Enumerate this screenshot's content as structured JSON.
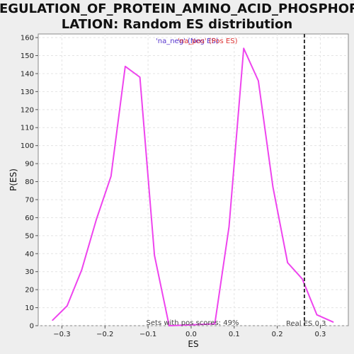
{
  "chart_data": {
    "type": "line",
    "title_lines": [
      "REGULATION_OF_PROTEIN_AMINO_ACID_PHOSPHORY",
      "LATION: Random ES distribution"
    ],
    "xlabel": "ES",
    "ylabel": "P(ES)",
    "xlim": [
      -0.355,
      0.365
    ],
    "ylim": [
      0,
      162
    ],
    "x_ticks": [
      -0.3,
      -0.2,
      -0.1,
      0.0,
      0.1,
      0.2,
      0.3
    ],
    "x_tick_labels": [
      "−0.3",
      "−0.2",
      "−0.1",
      "0.0",
      "0.1",
      "0.2",
      "0.3"
    ],
    "y_ticks": [
      0,
      10,
      20,
      30,
      40,
      50,
      60,
      70,
      80,
      90,
      100,
      110,
      120,
      130,
      140,
      150,
      160
    ],
    "y_tick_labels": [
      "0",
      "10",
      "20",
      "30",
      "40",
      "50",
      "60",
      "70",
      "80",
      "90",
      "100",
      "110",
      "120",
      "130",
      "140",
      "150",
      "160"
    ],
    "grid": true,
    "legend": [
      {
        "label": "'na_neg' (Neg ES)",
        "color": "#5533cc"
      },
      {
        "label": "'na_pos' (Pos ES)",
        "color": "#dd3333"
      }
    ],
    "series": [
      {
        "color": "#ee44ee",
        "points": [
          [
            -0.322,
            3
          ],
          [
            -0.288,
            11
          ],
          [
            -0.254,
            31
          ],
          [
            -0.22,
            59
          ],
          [
            -0.186,
            83
          ],
          [
            -0.153,
            144
          ],
          [
            -0.119,
            138
          ],
          [
            -0.085,
            39
          ],
          [
            -0.051,
            0
          ],
          [
            0.055,
            1
          ],
          [
            0.088,
            55
          ],
          [
            0.122,
            154
          ],
          [
            0.156,
            136
          ],
          [
            0.19,
            77
          ],
          [
            0.224,
            35
          ],
          [
            0.258,
            26
          ],
          [
            0.292,
            6
          ],
          [
            0.33,
            2
          ]
        ]
      }
    ],
    "real_es": 0.263,
    "real_es_label": "Real ES 0.3",
    "pos_scores_label": "Sets with pos scores: 49%"
  }
}
